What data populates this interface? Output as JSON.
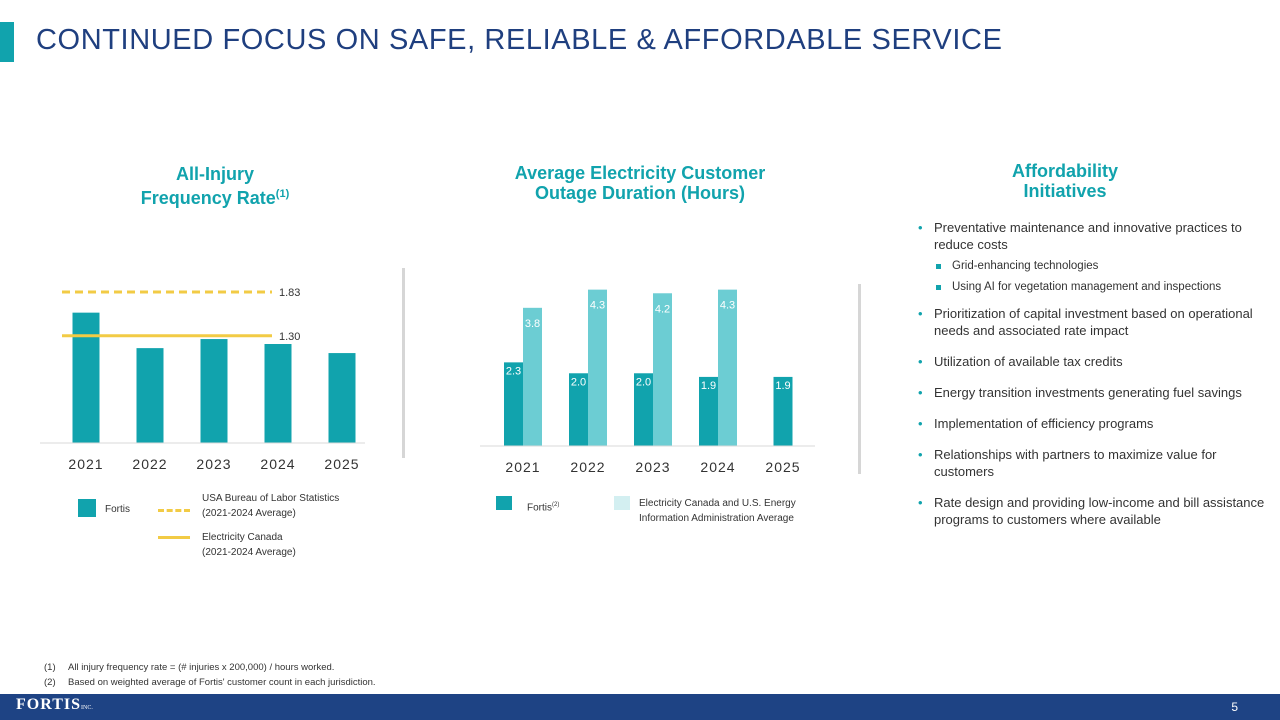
{
  "page": {
    "title": "CONTINUED FOCUS ON SAFE, RELIABLE & AFFORDABLE SERVICE",
    "page_number": "5",
    "logo_text": "FORTIS",
    "logo_suffix": "INC.",
    "accent_color": "#11a3ad",
    "navy_color": "#1e4384",
    "yellow_color": "#f2cb45",
    "light_teal_color": "#6ccdd3"
  },
  "injury": {
    "heading_line1": "All-Injury",
    "heading_line2": "Frequency Rate",
    "heading_sup": "(1)",
    "legend": {
      "fortis": "Fortis",
      "usa_line1": "USA Bureau of Labor Statistics",
      "usa_line2": "(2021-2024 Average)",
      "canada_line1": "Electricity Canada",
      "canada_line2": "(2021-2024 Average)"
    }
  },
  "outage": {
    "heading_line1": "Average Electricity Customer",
    "heading_line2": "Outage Duration (Hours)",
    "legend": {
      "fortis": "Fortis",
      "fortis_sup": "(2)",
      "bench_line1": "Electricity Canada and U.S. Energy",
      "bench_line2": "Information Administration Average"
    }
  },
  "afford": {
    "heading_line1": "Affordability",
    "heading_line2": "Initiatives",
    "bullets": [
      "Preventative maintenance and innovative practices to reduce costs",
      "Prioritization of capital investment based on operational needs and associated rate impact",
      "Utilization of available tax credits",
      "Energy transition investments generating fuel savings",
      "Implementation of efficiency programs",
      "Relationships with partners to maximize value for customers",
      "Rate design and providing low-income and bill assistance programs to customers where available"
    ],
    "sub_bullets": [
      "Grid-enhancing technologies",
      "Using AI for vegetation management and inspections"
    ]
  },
  "footnotes": [
    {
      "num": "(1)",
      "text": "All injury frequency rate = (# injuries x 200,000) / hours worked."
    },
    {
      "num": "(2)",
      "text": "Based on weighted average of Fortis' customer count in each jurisdiction."
    }
  ],
  "chart_data": [
    {
      "type": "bar",
      "categories": [
        "2021",
        "2022",
        "2023",
        "2024",
        "2025"
      ],
      "series": [
        {
          "name": "Fortis",
          "values": [
            1.58,
            1.15,
            1.26,
            1.2,
            1.09
          ],
          "color": "#11a3ad"
        }
      ],
      "reference_lines": [
        {
          "name": "USA Bureau of Labor Statistics (2021-2024 Average)",
          "value": 1.83,
          "label": "1.83",
          "style": "dashed",
          "color": "#f2cb45"
        },
        {
          "name": "Electricity Canada (2021-2024 Average)",
          "value": 1.3,
          "label": "1.30",
          "style": "solid",
          "color": "#f2cb45"
        }
      ],
      "ylim": [
        0,
        2.0
      ],
      "grid": false,
      "legend_position": "bottom"
    },
    {
      "type": "bar",
      "categories": [
        "2021",
        "2022",
        "2023",
        "2024",
        "2025"
      ],
      "series": [
        {
          "name": "Fortis",
          "values": [
            2.3,
            2.0,
            2.0,
            1.9,
            1.9
          ],
          "labels": [
            "2.3",
            "2.0",
            "2.0",
            "1.9",
            "1.9"
          ],
          "color": "#11a3ad"
        },
        {
          "name": "Electricity Canada and U.S. Energy Information Administration Average",
          "values": [
            3.8,
            4.3,
            4.2,
            4.3,
            null
          ],
          "labels": [
            "3.8",
            "4.3",
            "4.2",
            "4.3",
            ""
          ],
          "color": "#6ccdd3"
        }
      ],
      "ylim": [
        0,
        4.4
      ],
      "grid": false,
      "legend_position": "bottom"
    }
  ]
}
